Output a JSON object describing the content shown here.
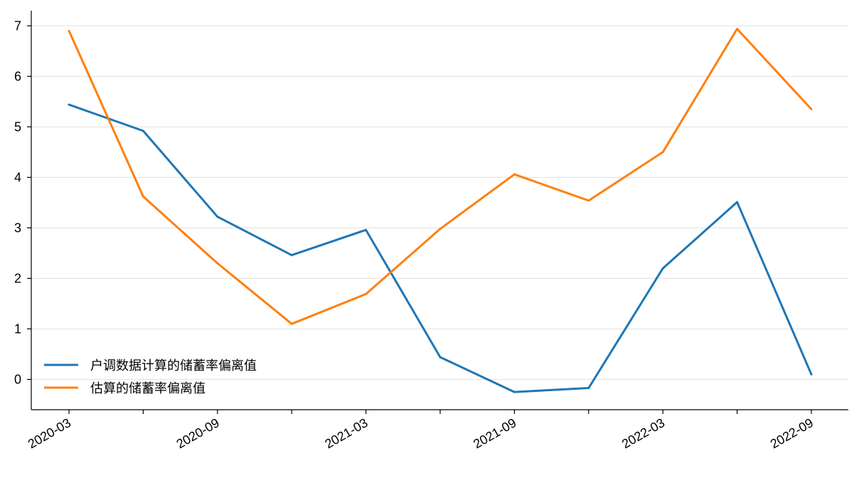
{
  "chart_data": {
    "type": "line",
    "x": [
      "2020-03",
      "2020-06",
      "2020-09",
      "2020-12",
      "2021-03",
      "2021-06",
      "2021-09",
      "2021-12",
      "2022-03",
      "2022-06",
      "2022-09"
    ],
    "x_tick_labels": [
      "2020-03",
      "2020-09",
      "2021-03",
      "2021-09",
      "2022-03",
      "2022-09"
    ],
    "y_ticks": [
      0,
      1,
      2,
      3,
      4,
      5,
      6,
      7
    ],
    "ylim": [
      -0.6,
      7.3
    ],
    "grid": "horizontal",
    "legend_position": "lower-left",
    "series": [
      {
        "name": "户调数据计算的储蓄率偏离值",
        "color": "#1f77b4",
        "values": [
          5.44,
          4.92,
          3.22,
          2.46,
          2.96,
          0.44,
          -0.25,
          -0.17,
          2.2,
          3.51,
          0.1
        ]
      },
      {
        "name": "估算的储蓄率偏离值",
        "color": "#ff7f0e",
        "values": [
          6.9,
          3.62,
          2.3,
          1.1,
          1.69,
          2.98,
          4.06,
          3.54,
          4.5,
          6.94,
          5.35
        ]
      }
    ]
  }
}
